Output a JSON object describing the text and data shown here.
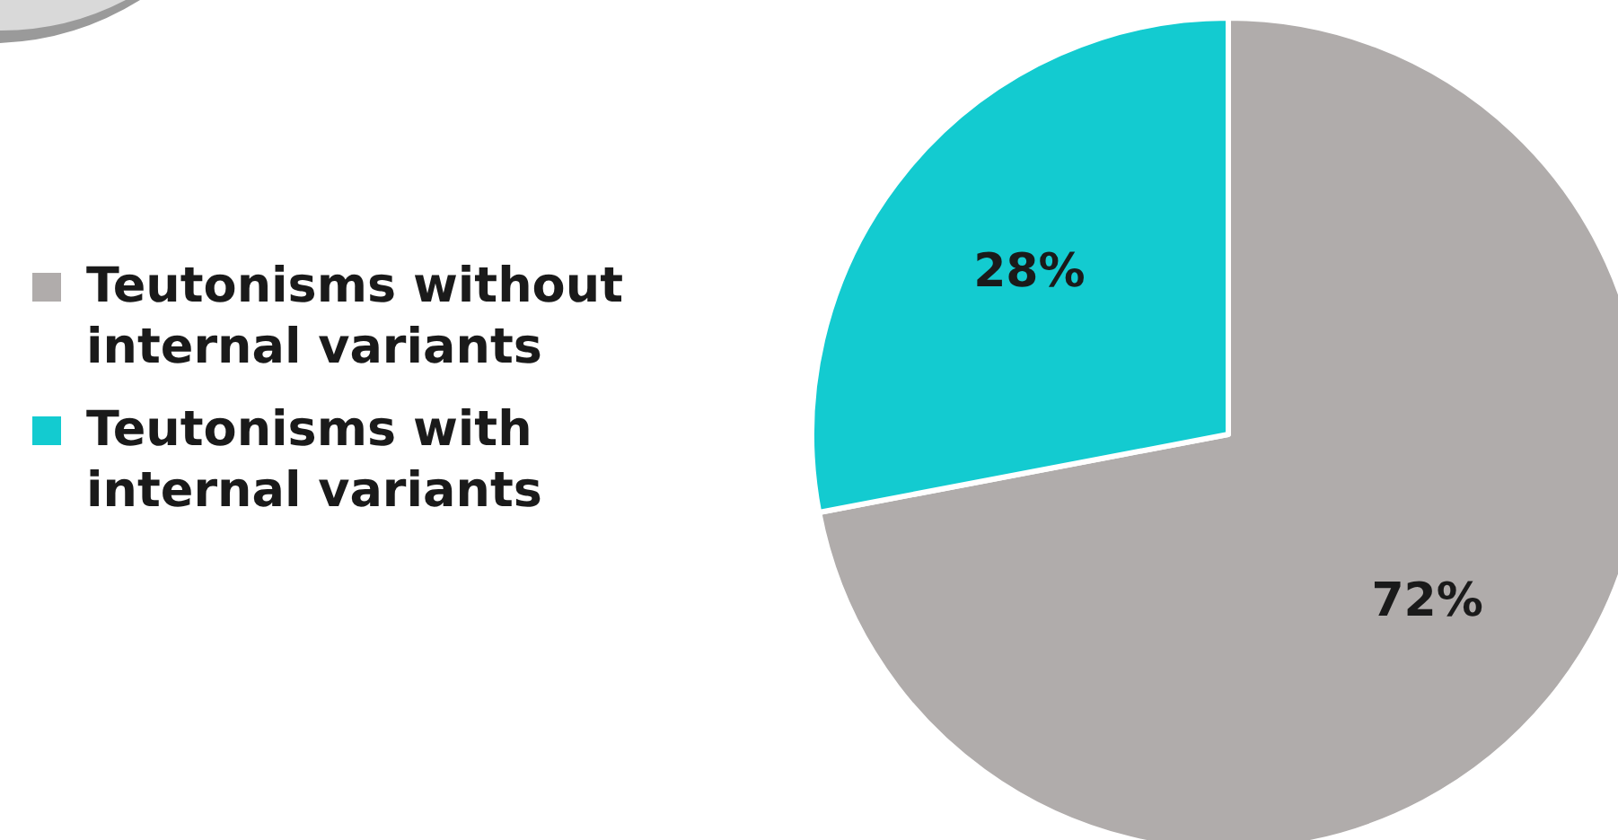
{
  "chart_data": {
    "type": "pie",
    "categories": [
      "Teutonisms without internal variants",
      "Teutonisms with internal variants"
    ],
    "values": [
      72,
      28
    ],
    "colors": [
      "#b0acab",
      "#13cbd0"
    ],
    "value_labels": [
      "72%",
      "28%"
    ],
    "legend": "left"
  }
}
